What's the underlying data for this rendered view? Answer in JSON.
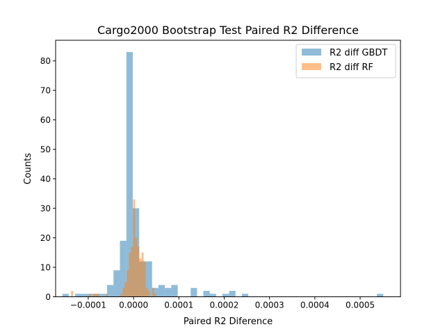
{
  "chart_data": {
    "type": "bar",
    "title": "Cargo2000 Bootstrap Test Paired R2 Difference",
    "xlabel": "Paired R2 Diference",
    "ylabel": "Counts",
    "xlim": [
      -0.000172,
      0.000589
    ],
    "ylim": [
      0,
      87
    ],
    "x_ticks": [
      -0.0001,
      0.0,
      0.0001,
      0.0002,
      0.0003,
      0.0004,
      0.0005
    ],
    "x_tick_labels": [
      "−0.0001",
      "0.0000",
      "0.0001",
      "0.0002",
      "0.0003",
      "0.0004",
      "0.0005"
    ],
    "y_ticks": [
      0,
      10,
      20,
      30,
      40,
      50,
      60,
      70,
      80
    ],
    "y_tick_labels": [
      "0",
      "10",
      "20",
      "30",
      "40",
      "50",
      "60",
      "70",
      "80"
    ],
    "grid": false,
    "legend_position": "upper right",
    "series": [
      {
        "name": "R2 diff GBDT",
        "color": "#1f77b4",
        "opacity": 0.5,
        "bins": [
          [
            -0.000157,
            -0.000143,
            1
          ],
          [
            -0.000129,
            -0.000115,
            1
          ],
          [
            -0.000115,
            -0.000101,
            1
          ],
          [
            -0.000101,
            -8.68e-05,
            1
          ],
          [
            -8.68e-05,
            -7.26e-05,
            1
          ],
          [
            -7.26e-05,
            -5.85e-05,
            1
          ],
          [
            -5.85e-05,
            -4.43e-05,
            4
          ],
          [
            -4.43e-05,
            -3.01e-05,
            9
          ],
          [
            -3.01e-05,
            -1.59e-05,
            19
          ],
          [
            -1.59e-05,
            -1.8e-06,
            83
          ],
          [
            -1.8e-06,
            1.24e-05,
            30
          ],
          [
            1.24e-05,
            2.66e-05,
            12
          ],
          [
            2.66e-05,
            4.08e-05,
            12
          ],
          [
            4.08e-05,
            5.49e-05,
            3
          ],
          [
            5.49e-05,
            6.91e-05,
            4
          ],
          [
            6.91e-05,
            8.33e-05,
            3
          ],
          [
            8.33e-05,
            9.75e-05,
            4
          ],
          [
            0.000126,
            0.00014,
            3
          ],
          [
            0.000154,
            0.000168,
            2
          ],
          [
            0.000168,
            0.000182,
            1
          ],
          [
            0.000196,
            0.000211,
            1
          ],
          [
            0.000211,
            0.000225,
            2
          ],
          [
            0.000239,
            0.000253,
            1
          ],
          [
            0.000537,
            0.000551,
            1
          ]
        ]
      },
      {
        "name": "R2 diff RF",
        "color": "#ff7f0e",
        "opacity": 0.5,
        "bins": [
          [
            -0.000138,
            -0.000133,
            2
          ],
          [
            -9.88e-05,
            -9.42e-05,
            1
          ],
          [
            -8.95e-05,
            -8.49e-05,
            1
          ],
          [
            -8.49e-05,
            -8.02e-05,
            1
          ],
          [
            -8.02e-05,
            -7.56e-05,
            1
          ],
          [
            -6.1e-05,
            -5.7e-05,
            1
          ],
          [
            -2.87e-05,
            -2.41e-05,
            1
          ],
          [
            -2.41e-05,
            -1.95e-05,
            3
          ],
          [
            -1.95e-05,
            -1.48e-05,
            5
          ],
          [
            -1.48e-05,
            -1.02e-05,
            9
          ],
          [
            -1.02e-05,
            -5.6e-06,
            15
          ],
          [
            -5.6e-06,
            -1e-06,
            17
          ],
          [
            -1e-06,
            3.7e-06,
            33
          ],
          [
            3.7e-06,
            8.3e-06,
            20
          ],
          [
            8.3e-06,
            1.29e-05,
            17
          ],
          [
            1.29e-05,
            1.76e-05,
            13
          ],
          [
            1.76e-05,
            2.22e-05,
            15
          ],
          [
            2.22e-05,
            2.68e-05,
            12
          ],
          [
            2.68e-05,
            3.15e-05,
            3
          ],
          [
            3.15e-05,
            3.61e-05,
            2
          ],
          [
            4.07e-05,
            4.53e-05,
            3
          ],
          [
            4.53e-05,
            5e-05,
            1
          ]
        ]
      }
    ]
  }
}
